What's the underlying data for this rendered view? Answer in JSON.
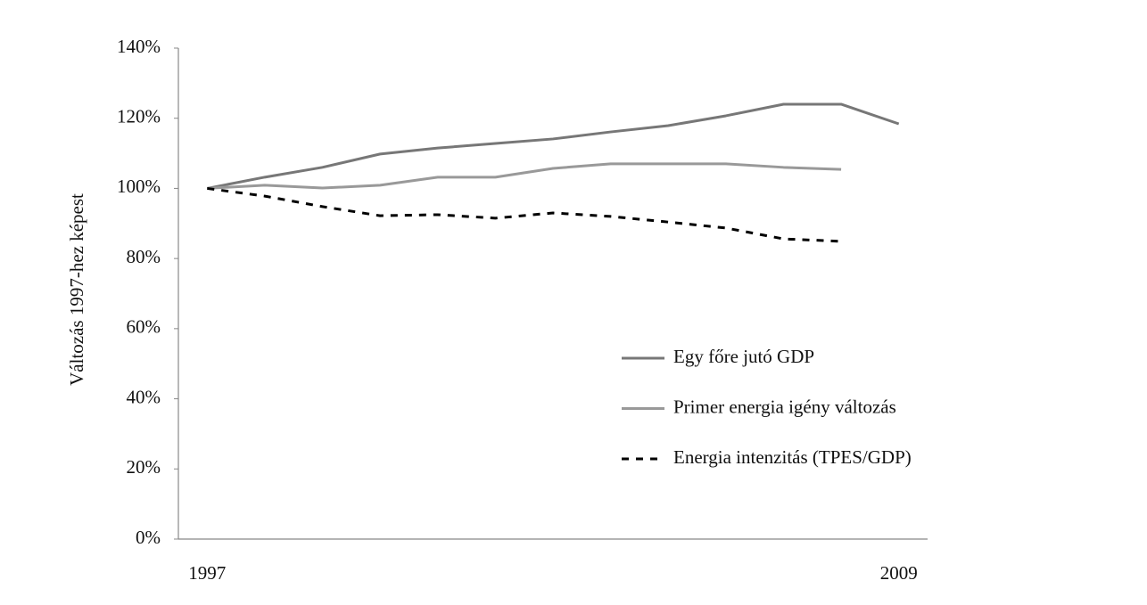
{
  "chart_data": {
    "type": "line",
    "y_label": "Változás 1997-hez képest",
    "categories": [
      "1997",
      null,
      null,
      null,
      null,
      null,
      null,
      null,
      null,
      null,
      null,
      null,
      "2009"
    ],
    "ylim": [
      0,
      140
    ],
    "yticks": [
      {
        "value": 0,
        "label": "0%"
      },
      {
        "value": 20,
        "label": "20%"
      },
      {
        "value": 40,
        "label": "40%"
      },
      {
        "value": 60,
        "label": "60%"
      },
      {
        "value": 80,
        "label": "80%"
      },
      {
        "value": 100,
        "label": "100%"
      },
      {
        "value": 120,
        "label": "120%"
      },
      {
        "value": 140,
        "label": "140%"
      }
    ],
    "legend": "right",
    "series": [
      {
        "name": "Egy főre jutó GDP",
        "color": "#777777",
        "dashed": false,
        "values": [
          100,
          103.2,
          106,
          109.8,
          111.5,
          112.8,
          114.1,
          116.1,
          117.9,
          120.7,
          124,
          124,
          118.4
        ]
      },
      {
        "name": "Primer energia igény változás",
        "color": "#999999",
        "dashed": false,
        "values": [
          100,
          100.9,
          100.1,
          100.9,
          103.2,
          103.2,
          105.7,
          107,
          107,
          107,
          106,
          105.4,
          null
        ]
      },
      {
        "name": "Energia intenzitás (TPES/GDP)",
        "color": "#000000",
        "dashed": true,
        "values": [
          100,
          97.8,
          94.8,
          92.2,
          92.5,
          91.5,
          93,
          92,
          90.4,
          88.7,
          85.6,
          84.9,
          null
        ]
      }
    ]
  }
}
